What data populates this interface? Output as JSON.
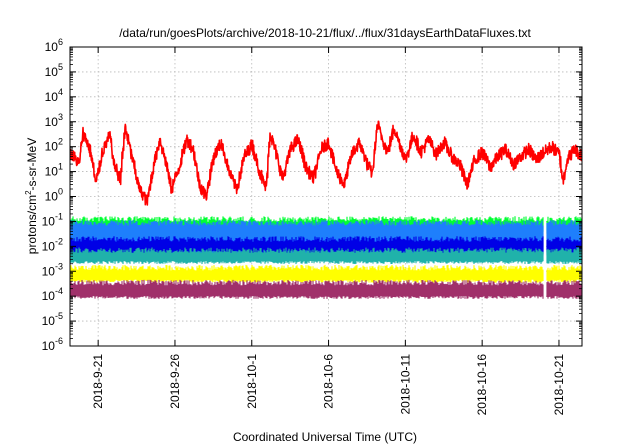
{
  "chart_data": {
    "type": "line",
    "title": "/data/run/goesPlots/archive/2018-10-21/flux/../flux/31daysEarthDataFluxes.txt",
    "xlabel": "Coordinated Universal Time (UTC)",
    "ylabel": {
      "pre": "protons/cm",
      "sup": "2",
      "post": "-s-sr-MeV"
    },
    "yscale": "log",
    "ylim": [
      1e-06,
      1000000.0
    ],
    "y_ticks": [
      {
        "base": "10",
        "exp": "-6"
      },
      {
        "base": "10",
        "exp": "-5"
      },
      {
        "base": "10",
        "exp": "-4"
      },
      {
        "base": "10",
        "exp": "-3"
      },
      {
        "base": "10",
        "exp": "-2"
      },
      {
        "base": "10",
        "exp": "-1"
      },
      {
        "base": "10",
        "exp": "0"
      },
      {
        "base": "10",
        "exp": "1"
      },
      {
        "base": "10",
        "exp": "2"
      },
      {
        "base": "10",
        "exp": "3"
      },
      {
        "base": "10",
        "exp": "4"
      },
      {
        "base": "10",
        "exp": "5"
      },
      {
        "base": "10",
        "exp": "6"
      }
    ],
    "xlim": [
      "2018-09-19T04:00",
      "2018-10-22T12:00"
    ],
    "x_ticks": [
      {
        "date": "2018-09-21",
        "label": "2018-9-21"
      },
      {
        "date": "2018-09-26",
        "label": "2018-9-26"
      },
      {
        "date": "2018-10-01",
        "label": "2018-10-1"
      },
      {
        "date": "2018-10-06",
        "label": "2018-10-6"
      },
      {
        "date": "2018-10-11",
        "label": "2018-10-11"
      },
      {
        "date": "2018-10-16",
        "label": "2018-10-16"
      },
      {
        "date": "2018-10-21",
        "label": "2018-10-21"
      }
    ],
    "grid": true,
    "data_gap": [
      "2018-10-20T00:30",
      "2018-10-20T04:30"
    ],
    "series": [
      {
        "color": "#ff0000",
        "stroke_width": 1.6,
        "noise_log10": 0.25,
        "points": [
          [
            "2018-09-19T06:00",
            50
          ],
          [
            "2018-09-19T18:00",
            20
          ],
          [
            "2018-09-20T00:00",
            400
          ],
          [
            "2018-09-20T12:00",
            60
          ],
          [
            "2018-09-20T20:00",
            3
          ],
          [
            "2018-09-21T06:00",
            60
          ],
          [
            "2018-09-21T18:00",
            300
          ],
          [
            "2018-09-22T00:00",
            20
          ],
          [
            "2018-09-22T10:00",
            5
          ],
          [
            "2018-09-22T18:00",
            600
          ],
          [
            "2018-09-23T00:00",
            120
          ],
          [
            "2018-09-23T08:00",
            15
          ],
          [
            "2018-09-23T16:00",
            2
          ],
          [
            "2018-09-24T04:00",
            0.6
          ],
          [
            "2018-09-24T16:00",
            30
          ],
          [
            "2018-09-25T00:00",
            200
          ],
          [
            "2018-09-25T10:00",
            20
          ],
          [
            "2018-09-25T18:00",
            2
          ],
          [
            "2018-09-26T06:00",
            15
          ],
          [
            "2018-09-26T18:00",
            200
          ],
          [
            "2018-09-27T04:00",
            80
          ],
          [
            "2018-09-27T14:00",
            3
          ],
          [
            "2018-09-28T00:00",
            1
          ],
          [
            "2018-09-28T12:00",
            40
          ],
          [
            "2018-09-29T00:00",
            150
          ],
          [
            "2018-09-29T12:00",
            10
          ],
          [
            "2018-09-30T00:00",
            2
          ],
          [
            "2018-09-30T12:00",
            40
          ],
          [
            "2018-10-01T00:00",
            120
          ],
          [
            "2018-10-01T12:00",
            10
          ],
          [
            "2018-10-01T22:00",
            2
          ],
          [
            "2018-10-02T04:00",
            400
          ],
          [
            "2018-10-02T14:00",
            50
          ],
          [
            "2018-10-03T00:00",
            5
          ],
          [
            "2018-10-03T12:00",
            80
          ],
          [
            "2018-10-04T00:00",
            200
          ],
          [
            "2018-10-04T12:00",
            15
          ],
          [
            "2018-10-05T00:00",
            5
          ],
          [
            "2018-10-05T12:00",
            80
          ],
          [
            "2018-10-06T00:00",
            150
          ],
          [
            "2018-10-06T12:00",
            10
          ],
          [
            "2018-10-07T00:00",
            3
          ],
          [
            "2018-10-07T12:00",
            50
          ],
          [
            "2018-10-08T00:00",
            150
          ],
          [
            "2018-10-08T12:00",
            20
          ],
          [
            "2018-10-08T20:00",
            8
          ],
          [
            "2018-10-09T04:00",
            800
          ],
          [
            "2018-10-09T12:00",
            200
          ],
          [
            "2018-10-09T20:00",
            60
          ],
          [
            "2018-10-10T06:00",
            600
          ],
          [
            "2018-10-10T16:00",
            100
          ],
          [
            "2018-10-11T00:00",
            30
          ],
          [
            "2018-10-11T12:00",
            300
          ],
          [
            "2018-10-12T00:00",
            60
          ],
          [
            "2018-10-12T12:00",
            200
          ],
          [
            "2018-10-13T00:00",
            50
          ],
          [
            "2018-10-13T12:00",
            150
          ],
          [
            "2018-10-14T00:00",
            40
          ],
          [
            "2018-10-14T12:00",
            20
          ],
          [
            "2018-10-15T00:00",
            3
          ],
          [
            "2018-10-15T12:00",
            30
          ],
          [
            "2018-10-16T00:00",
            60
          ],
          [
            "2018-10-16T12:00",
            15
          ],
          [
            "2018-10-17T00:00",
            40
          ],
          [
            "2018-10-17T12:00",
            80
          ],
          [
            "2018-10-18T00:00",
            20
          ],
          [
            "2018-10-18T12:00",
            40
          ],
          [
            "2018-10-19T00:00",
            80
          ],
          [
            "2018-10-19T12:00",
            30
          ],
          [
            "2018-10-20T00:00",
            60
          ],
          [
            "2018-10-20T12:00",
            100
          ],
          [
            "2018-10-21T00:00",
            50
          ],
          [
            "2018-10-21T06:00",
            4
          ],
          [
            "2018-10-21T12:00",
            30
          ],
          [
            "2018-10-22T00:00",
            80
          ],
          [
            "2018-10-22T12:00",
            40
          ]
        ]
      },
      {
        "color": "#00ff33",
        "band_log10": [
          -1.45,
          -0.95
        ]
      },
      {
        "color": "#1e7ffc",
        "band_log10": [
          -2.35,
          -1.1
        ]
      },
      {
        "color": "#0000e6",
        "band_log10": [
          -2.25,
          -1.75
        ]
      },
      {
        "color": "#20b2aa",
        "band_log10": [
          -2.65,
          -2.2
        ]
      },
      {
        "color": "#ffff00",
        "band_log10": [
          -3.4,
          -2.9
        ]
      },
      {
        "color": "#a0306a",
        "band_log10": [
          -4.05,
          -3.5
        ]
      }
    ]
  }
}
